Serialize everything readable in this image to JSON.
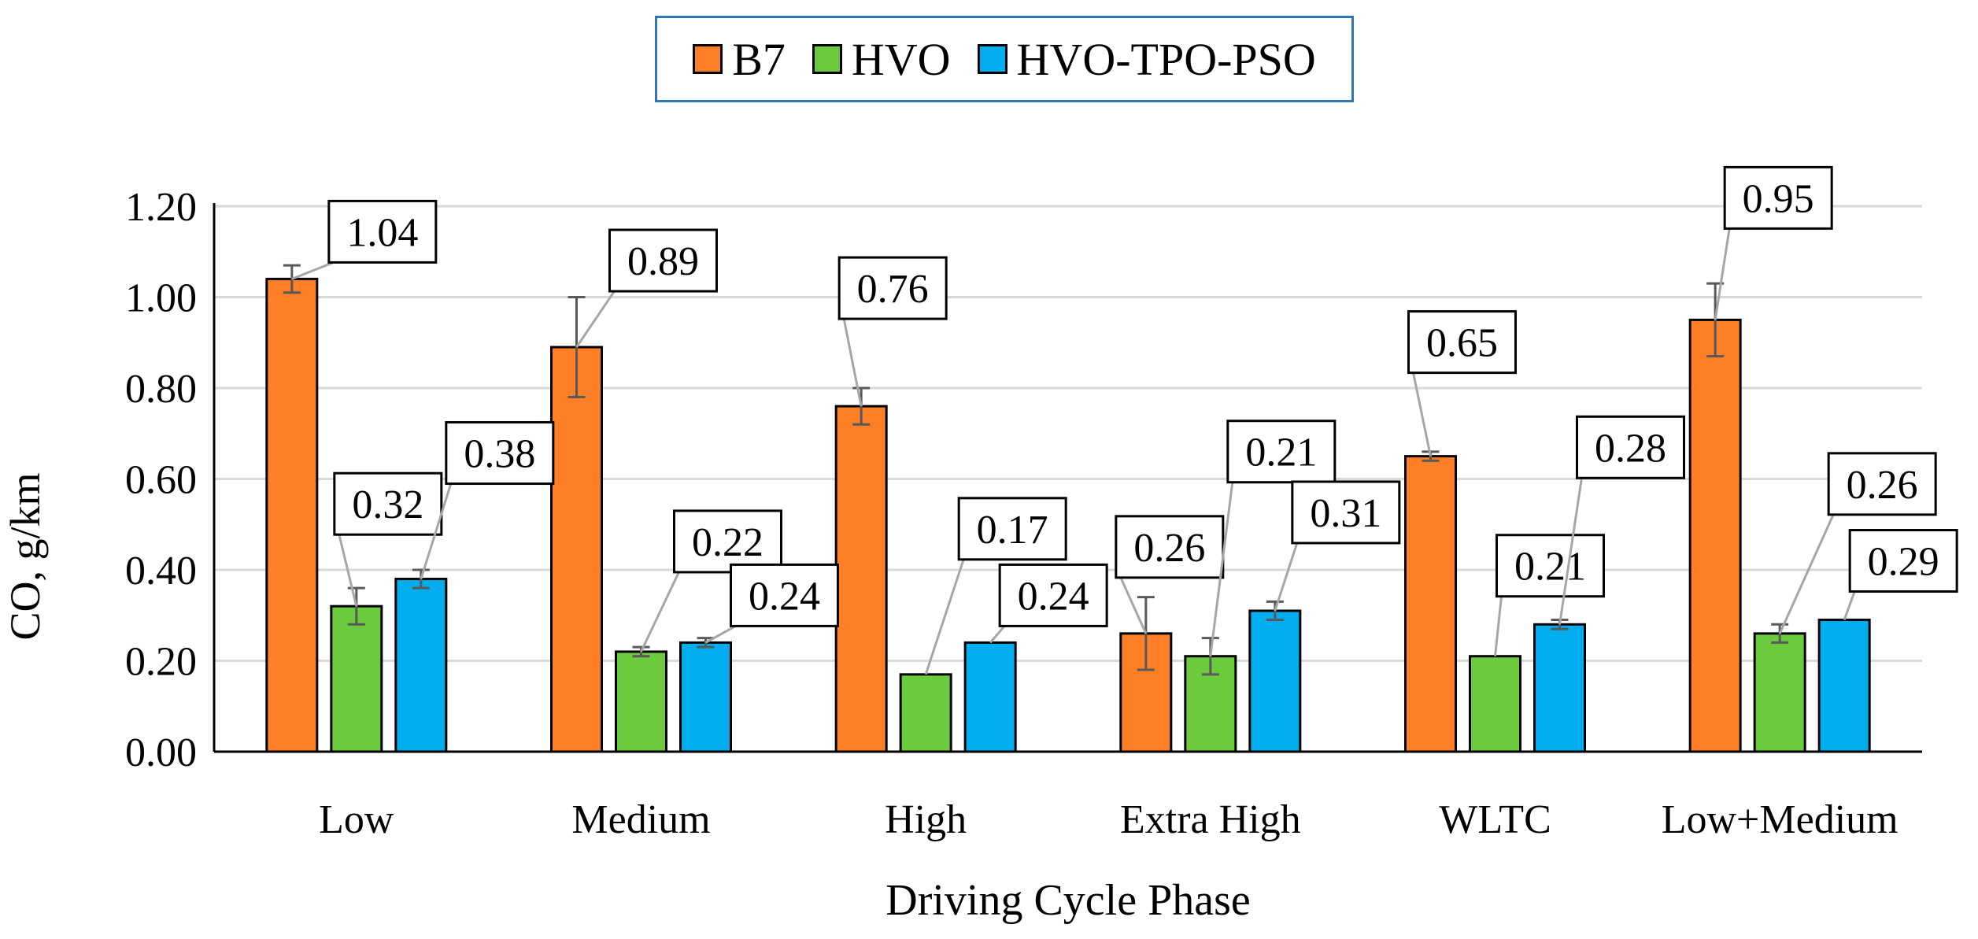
{
  "chart_data": {
    "type": "bar",
    "title": "",
    "xlabel": "Driving Cycle Phase",
    "ylabel": "CO, g/km",
    "ylim": [
      0,
      1.2
    ],
    "yticks": [
      "0.00",
      "0.20",
      "0.40",
      "0.60",
      "0.80",
      "1.00",
      "1.20"
    ],
    "grid": true,
    "legend_position": "top-center",
    "categories": [
      "Low",
      "Medium",
      "High",
      "Extra High",
      "WLTC",
      "Low+Medium"
    ],
    "series": [
      {
        "name": "B7",
        "color": "#FF7F27",
        "values": [
          1.04,
          0.89,
          0.76,
          0.26,
          0.65,
          0.95
        ],
        "labels": [
          "1.04",
          "0.89",
          "0.76",
          "0.26",
          "0.65",
          "0.95"
        ],
        "error": [
          0.03,
          0.11,
          0.04,
          0.08,
          0.01,
          0.08
        ]
      },
      {
        "name": "HVO",
        "color": "#6CCB3D",
        "values": [
          0.32,
          0.22,
          0.17,
          0.21,
          0.21,
          0.26
        ],
        "labels": [
          "0.32",
          "0.22",
          "0.17",
          "0.21",
          "0.21",
          "0.26"
        ],
        "error": [
          0.04,
          0.01,
          0.0,
          0.04,
          0.0,
          0.02
        ]
      },
      {
        "name": "HVO-TPO-PSO",
        "color": "#00AEEF",
        "values": [
          0.38,
          0.24,
          0.24,
          0.31,
          0.28,
          0.29
        ],
        "labels": [
          "0.38",
          "0.24",
          "0.24",
          "0.31",
          "0.28",
          "0.29"
        ],
        "error": [
          0.02,
          0.01,
          0.0,
          0.02,
          0.01,
          0.0
        ]
      }
    ]
  }
}
